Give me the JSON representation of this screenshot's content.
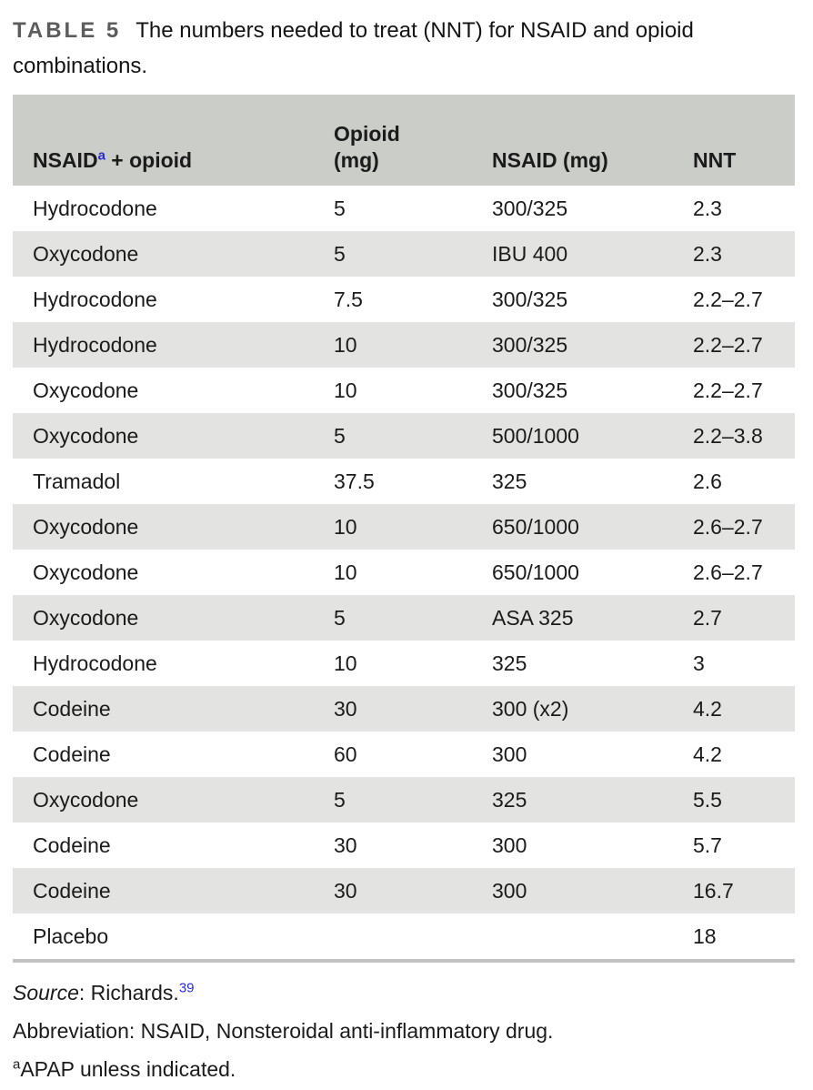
{
  "title": {
    "tag": "TABLE 5",
    "text": "The numbers needed to treat (NNT) for NSAID and opioid combinations."
  },
  "table": {
    "header": {
      "col1_pre": "NSAID",
      "col1_sup": "a",
      "col1_post": " + opioid",
      "col2_line1": "Opioid",
      "col2_line2": "(mg)",
      "col3": "NSAID (mg)",
      "col4": "NNT"
    },
    "rows": [
      {
        "drug": "Hydrocodone",
        "opioid_mg": "5",
        "nsaid_mg": "300/325",
        "nnt": "2.3"
      },
      {
        "drug": "Oxycodone",
        "opioid_mg": "5",
        "nsaid_mg": "IBU 400",
        "nnt": "2.3"
      },
      {
        "drug": "Hydrocodone",
        "opioid_mg": "7.5",
        "nsaid_mg": "300/325",
        "nnt": "2.2–2.7"
      },
      {
        "drug": "Hydrocodone",
        "opioid_mg": "10",
        "nsaid_mg": "300/325",
        "nnt": "2.2–2.7"
      },
      {
        "drug": "Oxycodone",
        "opioid_mg": "10",
        "nsaid_mg": "300/325",
        "nnt": "2.2–2.7"
      },
      {
        "drug": "Oxycodone",
        "opioid_mg": "5",
        "nsaid_mg": "500/1000",
        "nnt": "2.2–3.8"
      },
      {
        "drug": "Tramadol",
        "opioid_mg": "37.5",
        "nsaid_mg": "325",
        "nnt": "2.6"
      },
      {
        "drug": "Oxycodone",
        "opioid_mg": "10",
        "nsaid_mg": "650/1000",
        "nnt": "2.6–2.7"
      },
      {
        "drug": "Oxycodone",
        "opioid_mg": "10",
        "nsaid_mg": "650/1000",
        "nnt": "2.6–2.7"
      },
      {
        "drug": "Oxycodone",
        "opioid_mg": "5",
        "nsaid_mg": "ASA 325",
        "nnt": "2.7"
      },
      {
        "drug": "Hydrocodone",
        "opioid_mg": "10",
        "nsaid_mg": "325",
        "nnt": "3"
      },
      {
        "drug": "Codeine",
        "opioid_mg": "30",
        "nsaid_mg": "300 (x2)",
        "nnt": "4.2"
      },
      {
        "drug": "Codeine",
        "opioid_mg": "60",
        "nsaid_mg": "300",
        "nnt": "4.2"
      },
      {
        "drug": "Oxycodone",
        "opioid_mg": "5",
        "nsaid_mg": "325",
        "nnt": "5.5"
      },
      {
        "drug": "Codeine",
        "opioid_mg": "30",
        "nsaid_mg": "300",
        "nnt": "5.7"
      },
      {
        "drug": "Codeine",
        "opioid_mg": "30",
        "nsaid_mg": "300",
        "nnt": "16.7"
      },
      {
        "drug": "Placebo",
        "opioid_mg": "",
        "nsaid_mg": "",
        "nnt": "18"
      }
    ]
  },
  "footnotes": {
    "source_label": "Source",
    "source_rest": ": Richards.",
    "source_ref": "39",
    "abbreviation": "Abbreviation: NSAID, Nonsteroidal anti-inflammatory drug.",
    "footnote_marker": "a",
    "footnote_text": "APAP unless indicated."
  },
  "colors": {
    "header_background": "#cbcdc8",
    "alternate_row_background": "#e3e4e2",
    "bottom_rule": "#c3c3c3",
    "table_tag_gray": "#5c5c5c",
    "link_blue": "#2a2ad4",
    "text": "#1b1b1b"
  }
}
